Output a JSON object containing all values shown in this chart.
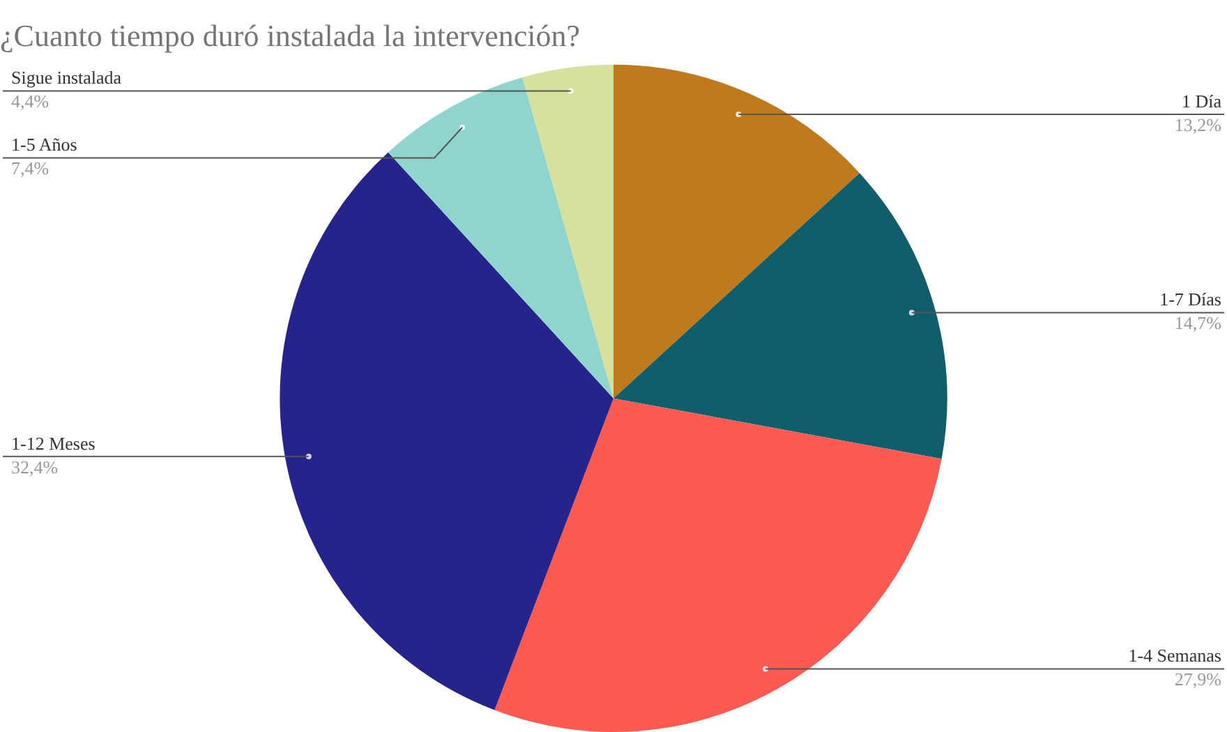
{
  "chart_data": {
    "type": "pie",
    "title": "¿Cuanto tiempo duró instalada la intervención?",
    "categories": [
      "1 Día",
      "1-7 Días",
      "1-4 Semanas",
      "1-12 Meses",
      "1-5 Años",
      "Sigue instalada"
    ],
    "values": [
      13.2,
      14.7,
      27.9,
      32.4,
      7.4,
      4.4
    ],
    "value_labels": [
      "13,2%",
      "14,7%",
      "27,9%",
      "32,4%",
      "7,4%",
      "4,4%"
    ],
    "colors": [
      "#c07a1e",
      "#0f5e69",
      "#fd5a54",
      "#26238a",
      "#8fd5cd",
      "#d5e19c"
    ],
    "legend": false
  }
}
